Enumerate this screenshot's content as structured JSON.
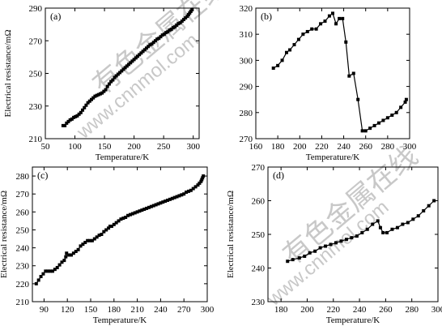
{
  "watermark": {
    "cn": "有色金属在线",
    "en": "www.cnnmol.com"
  },
  "chart_data": [
    {
      "panel": "(a)",
      "type": "line",
      "xlabel": "Temperature/K",
      "ylabel": "Electrical resistance/mΩ",
      "xlim": [
        50,
        310
      ],
      "ylim": [
        210,
        290
      ],
      "xticks": [
        50,
        100,
        150,
        200,
        250,
        300
      ],
      "yticks": [
        210,
        230,
        250,
        270,
        290
      ],
      "series": [
        {
          "marker": "square",
          "x": [
            80,
            83,
            86,
            89,
            92,
            95,
            98,
            101,
            104,
            107,
            110,
            113,
            116,
            119,
            122,
            125,
            128,
            131,
            134,
            137,
            140,
            143,
            146,
            149,
            152,
            155,
            158,
            161,
            164,
            167,
            170,
            173,
            176,
            179,
            182,
            185,
            188,
            191,
            194,
            197,
            200,
            203,
            206,
            209,
            212,
            215,
            218,
            221,
            224,
            227,
            230,
            233,
            236,
            239,
            242,
            245,
            248,
            251,
            254,
            257,
            260,
            263,
            266,
            269,
            272,
            275,
            278,
            281,
            284,
            287,
            290,
            292,
            294,
            296,
            298
          ],
          "y": [
            218,
            218,
            219.5,
            220.5,
            221.5,
            222,
            223,
            223.5,
            224,
            225,
            226,
            227.5,
            229,
            230.5,
            232,
            233,
            234,
            235,
            236,
            236.5,
            237,
            237.5,
            238,
            239,
            240,
            242,
            243.5,
            245,
            246,
            247.5,
            248.5,
            249.5,
            250.5,
            251.5,
            252.5,
            253.5,
            254.5,
            255.5,
            256.5,
            257.5,
            258.5,
            259.5,
            260.5,
            261.5,
            262.5,
            263.5,
            264.5,
            265.5,
            266.5,
            267.5,
            268,
            269,
            270,
            271,
            271.5,
            272.5,
            273.5,
            274,
            275,
            275.5,
            276.5,
            277,
            278,
            278.5,
            279.5,
            280.5,
            281,
            282,
            283,
            284,
            285,
            286,
            287,
            288,
            289
          ]
        }
      ]
    },
    {
      "panel": "(b)",
      "type": "line",
      "xlabel": "Temperature/K",
      "ylabel": "",
      "xlim": [
        160,
        300
      ],
      "ylim": [
        270,
        320
      ],
      "xticks": [
        160,
        180,
        200,
        220,
        240,
        260,
        280,
        300
      ],
      "yticks": [
        270,
        280,
        290,
        300,
        310,
        320
      ],
      "series": [
        {
          "marker": "square",
          "x": [
            176,
            180,
            184,
            188,
            191,
            195,
            199,
            203,
            207,
            211,
            215,
            219,
            223,
            227,
            230,
            233,
            236,
            239,
            242,
            245,
            249,
            253,
            257,
            260,
            264,
            268,
            272,
            276,
            280,
            284,
            288,
            292,
            296,
            297
          ],
          "y": [
            297,
            298,
            300,
            303,
            304,
            306,
            308,
            310,
            311,
            312,
            312,
            314,
            315,
            317,
            318,
            314,
            316,
            316,
            307,
            294,
            295,
            285,
            273,
            273,
            274,
            275,
            276,
            277,
            278,
            279,
            280,
            282,
            284,
            285
          ]
        }
      ]
    },
    {
      "panel": "(c)",
      "type": "line",
      "xlabel": "Temperature/K",
      "ylabel": "Electrical resistance/mΩ",
      "xlim": [
        75,
        300
      ],
      "ylim": [
        210,
        285
      ],
      "xticks": [
        90,
        120,
        150,
        180,
        210,
        240,
        270,
        300
      ],
      "yticks": [
        210,
        220,
        230,
        240,
        250,
        260,
        270,
        280
      ],
      "series": [
        {
          "marker": "square",
          "x": [
            80,
            83,
            86,
            89,
            92,
            95,
            98,
            101,
            104,
            107,
            110,
            113,
            116,
            118,
            119,
            122,
            125,
            128,
            131,
            134,
            137,
            140,
            143,
            146,
            149,
            152,
            155,
            158,
            161,
            164,
            167,
            170,
            173,
            175,
            177,
            180,
            183,
            186,
            189,
            192,
            195,
            198,
            201,
            204,
            207,
            210,
            213,
            216,
            219,
            222,
            225,
            228,
            231,
            234,
            237,
            240,
            243,
            246,
            249,
            252,
            255,
            258,
            261,
            264,
            267,
            270,
            273,
            276,
            279,
            282,
            285,
            288,
            290,
            292,
            293,
            294,
            295
          ],
          "y": [
            220,
            222,
            224,
            225.5,
            227,
            227,
            227,
            227,
            228,
            229,
            230.5,
            232,
            233,
            235,
            237,
            236,
            236,
            237,
            238,
            239,
            241,
            242,
            243,
            244,
            244,
            244,
            245,
            246,
            247,
            247.5,
            249,
            250,
            251,
            252,
            252,
            253,
            254,
            255,
            256,
            256.5,
            257,
            258,
            258.5,
            259,
            259.5,
            260,
            260.5,
            261,
            261.5,
            262,
            262.5,
            263,
            263.5,
            264,
            264.5,
            265,
            265.5,
            266,
            266.5,
            267,
            267.5,
            268,
            268.5,
            269,
            269.5,
            270,
            271,
            271.5,
            272,
            273,
            274,
            275,
            276,
            277,
            278,
            279,
            280
          ]
        }
      ]
    },
    {
      "panel": "(d)",
      "type": "line",
      "xlabel": "Temperature/K",
      "ylabel": "Electrical resistance/mΩ",
      "xlim": [
        170,
        300
      ],
      "ylim": [
        230,
        270
      ],
      "xticks": [
        180,
        200,
        220,
        240,
        260,
        280,
        300
      ],
      "yticks": [
        230,
        240,
        250,
        260,
        270
      ],
      "series": [
        {
          "marker": "square",
          "x": [
            185,
            189,
            194,
            198,
            202,
            206,
            210,
            214,
            218,
            222,
            226,
            230,
            234,
            238,
            242,
            246,
            250,
            254,
            256,
            258,
            261,
            265,
            269,
            273,
            277,
            281,
            285,
            289,
            293,
            297
          ],
          "y": [
            242,
            242.5,
            243,
            243.5,
            244.5,
            245,
            246,
            246.5,
            247,
            247.5,
            248,
            248.5,
            249,
            249.5,
            250.5,
            251.5,
            253,
            254,
            252,
            250.5,
            250.5,
            251.5,
            252,
            253,
            253.5,
            254.5,
            255.5,
            257,
            258.5,
            260
          ]
        }
      ]
    }
  ]
}
